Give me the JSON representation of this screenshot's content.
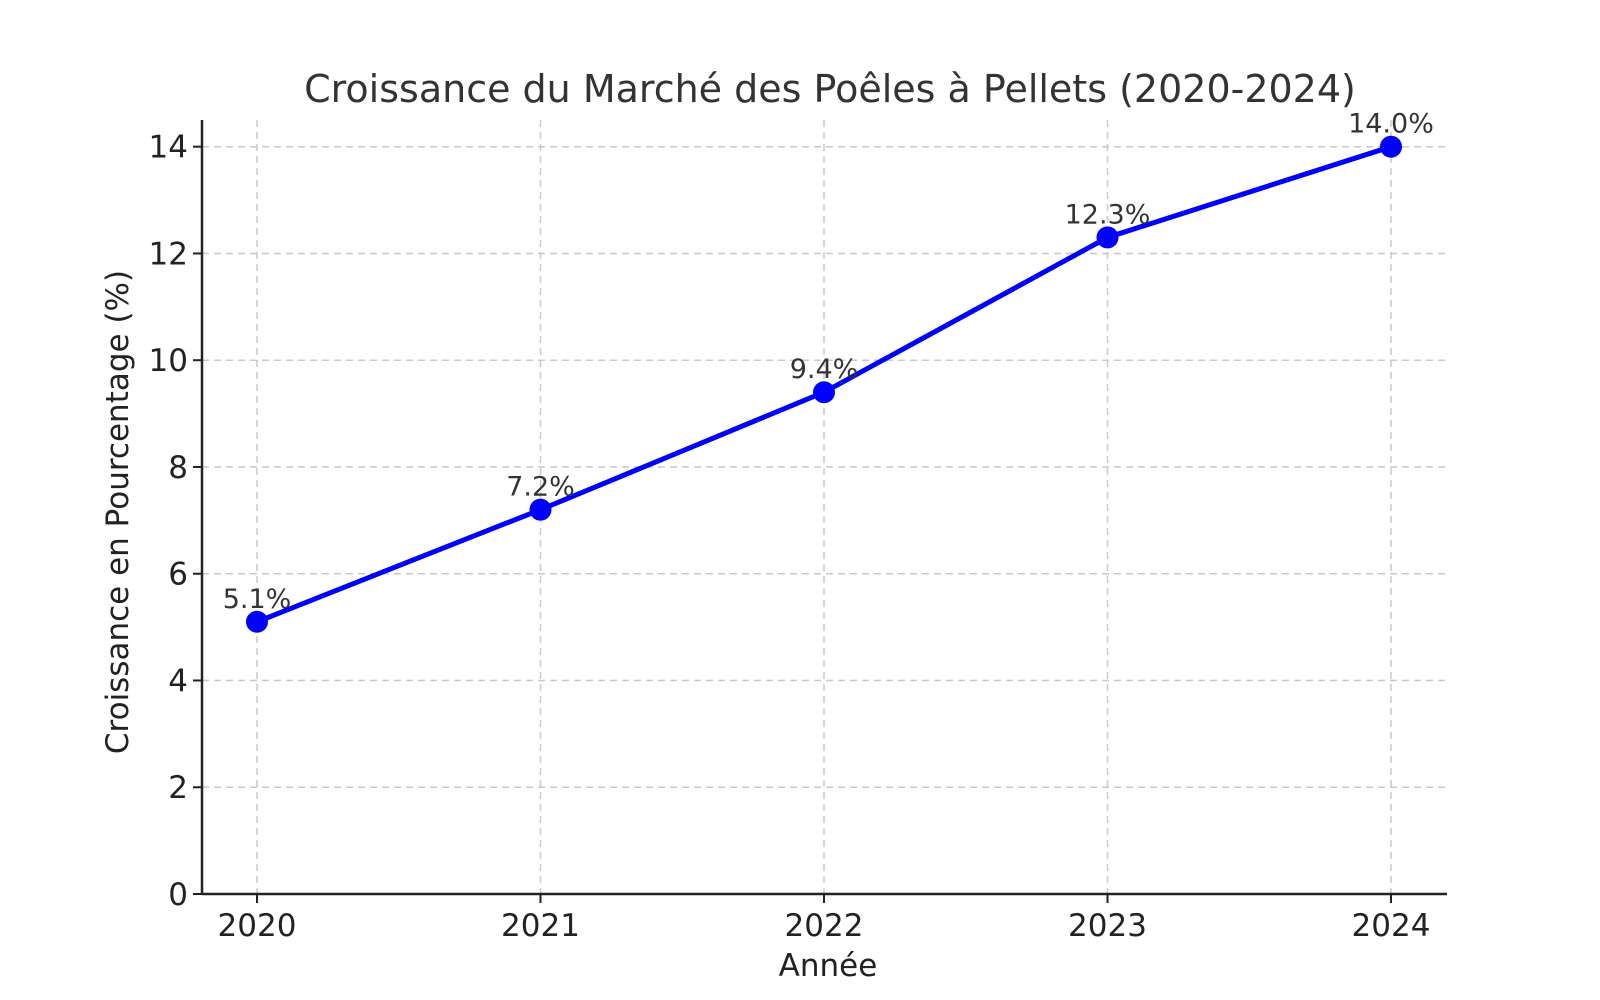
{
  "chart_data": {
    "type": "line",
    "title": "Croissance du Marché des Poêles à Pellets (2020-2024)",
    "xlabel": "Année",
    "ylabel": "Croissance en Pourcentage (%)",
    "categories": [
      "2020",
      "2021",
      "2022",
      "2023",
      "2024"
    ],
    "yticks": [
      "0",
      "2",
      "4",
      "6",
      "8",
      "10",
      "12",
      "14"
    ],
    "ylim": [
      0,
      14.5
    ],
    "grid": true,
    "series": [
      {
        "values": [
          5.1,
          7.2,
          9.4,
          12.3,
          14.0
        ],
        "labels": [
          "5.1%",
          "7.2%",
          "9.4%",
          "12.3%",
          "14.0%"
        ],
        "color": "#0000ff",
        "marker": "circle"
      }
    ]
  }
}
